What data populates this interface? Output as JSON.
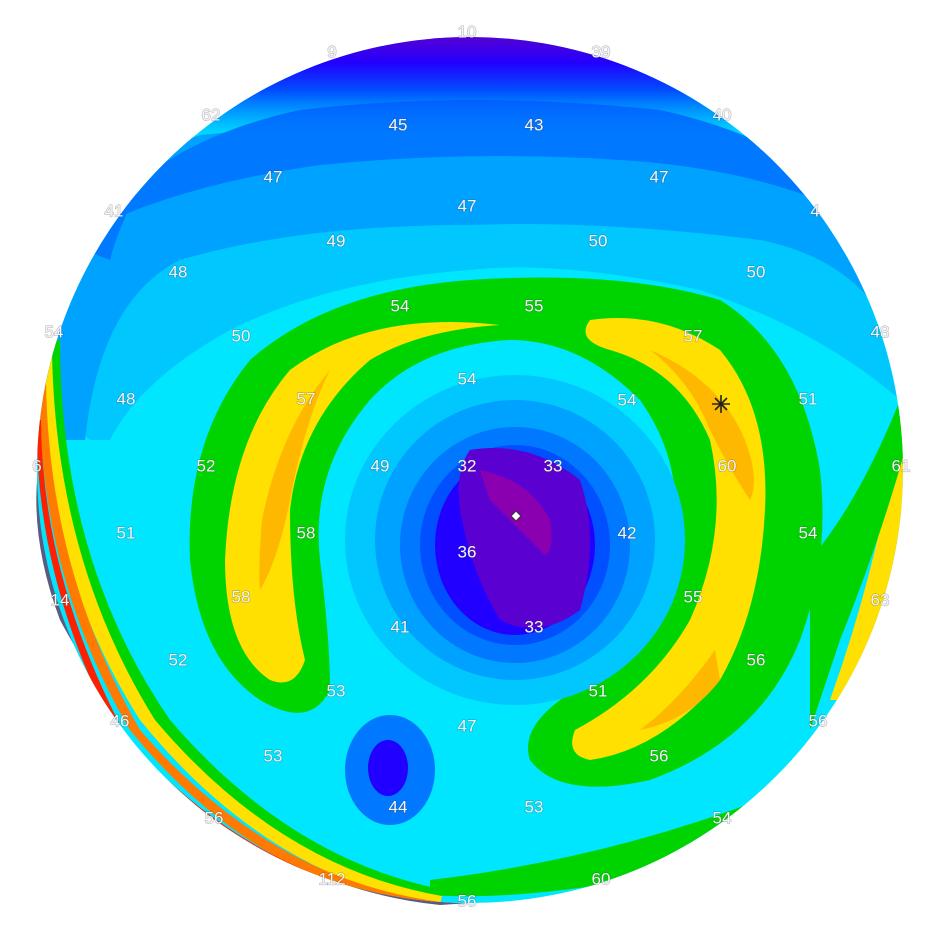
{
  "map": {
    "colors": {
      "violet": "#8a00b0",
      "indigo": "#5a00d0",
      "blue_deep": "#2200ff",
      "blue": "#0050ff",
      "blue_mid": "#0078ff",
      "azure": "#00a2ff",
      "sky": "#00c8ff",
      "cyan": "#00e6ff",
      "green": "#00d400",
      "yellow": "#ffe000",
      "amber": "#ffb800",
      "orange": "#ff7a00",
      "red": "#ff2000",
      "dark_red": "#c00000",
      "shadow": "#5c5a80",
      "marker": "#222222"
    },
    "labels": [
      {
        "text": "10"
      },
      {
        "text": "9"
      },
      {
        "text": "39"
      },
      {
        "text": "62"
      },
      {
        "text": "45"
      },
      {
        "text": "43"
      },
      {
        "text": "40"
      },
      {
        "text": "47"
      },
      {
        "text": "47"
      },
      {
        "text": "41"
      },
      {
        "text": "47"
      },
      {
        "text": "4"
      },
      {
        "text": "49"
      },
      {
        "text": "50"
      },
      {
        "text": "48"
      },
      {
        "text": "50"
      },
      {
        "text": "54"
      },
      {
        "text": "55"
      },
      {
        "text": "54"
      },
      {
        "text": "50"
      },
      {
        "text": "57"
      },
      {
        "text": "48"
      },
      {
        "text": "54"
      },
      {
        "text": "48"
      },
      {
        "text": "57"
      },
      {
        "text": "54"
      },
      {
        "text": "51"
      },
      {
        "text": "6"
      },
      {
        "text": "52"
      },
      {
        "text": "49"
      },
      {
        "text": "32"
      },
      {
        "text": "33"
      },
      {
        "text": "60"
      },
      {
        "text": "61"
      },
      {
        "text": "51"
      },
      {
        "text": "58"
      },
      {
        "text": "36"
      },
      {
        "text": "42"
      },
      {
        "text": "54"
      },
      {
        "text": "14"
      },
      {
        "text": "58"
      },
      {
        "text": "55"
      },
      {
        "text": "63"
      },
      {
        "text": "41"
      },
      {
        "text": "33"
      },
      {
        "text": "52"
      },
      {
        "text": "56"
      },
      {
        "text": "53"
      },
      {
        "text": "51"
      },
      {
        "text": "46"
      },
      {
        "text": "47"
      },
      {
        "text": "56"
      },
      {
        "text": "53"
      },
      {
        "text": "56"
      },
      {
        "text": "44"
      },
      {
        "text": "53"
      },
      {
        "text": "56"
      },
      {
        "text": "54"
      },
      {
        "text": "112"
      },
      {
        "text": "60"
      },
      {
        "text": "56"
      }
    ]
  }
}
